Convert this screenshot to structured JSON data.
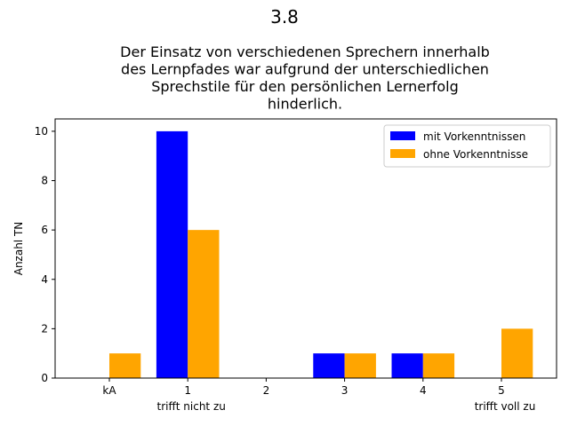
{
  "chart_data": {
    "type": "bar",
    "suptitle": "3.8",
    "title_lines": [
      "Der Einsatz von verschiedenen Sprechern innerhalb",
      "des Lernpfades war aufgrund der unterschiedlichen",
      "Sprechstile für den persönlichen Lernerfolg",
      "hinderlich."
    ],
    "categories": [
      "kA",
      "1",
      "2",
      "3",
      "4",
      "5"
    ],
    "category_sublabels": [
      "",
      "trifft nicht zu",
      "",
      "",
      "",
      "trifft voll zu"
    ],
    "series": [
      {
        "name": "mit Vorkenntnissen",
        "color": "#0000ff",
        "values": [
          0,
          10,
          0,
          1,
          1,
          0
        ]
      },
      {
        "name": "ohne Vorkenntnisse",
        "color": "#ffa500",
        "values": [
          1,
          6,
          0,
          1,
          1,
          2
        ]
      }
    ],
    "xlabel": "",
    "ylabel": "Anzahl TN",
    "ylim": [
      0,
      10.5
    ],
    "yticks": [
      0,
      2,
      4,
      6,
      8,
      10
    ],
    "grid": false,
    "legend_position": "top-right"
  }
}
